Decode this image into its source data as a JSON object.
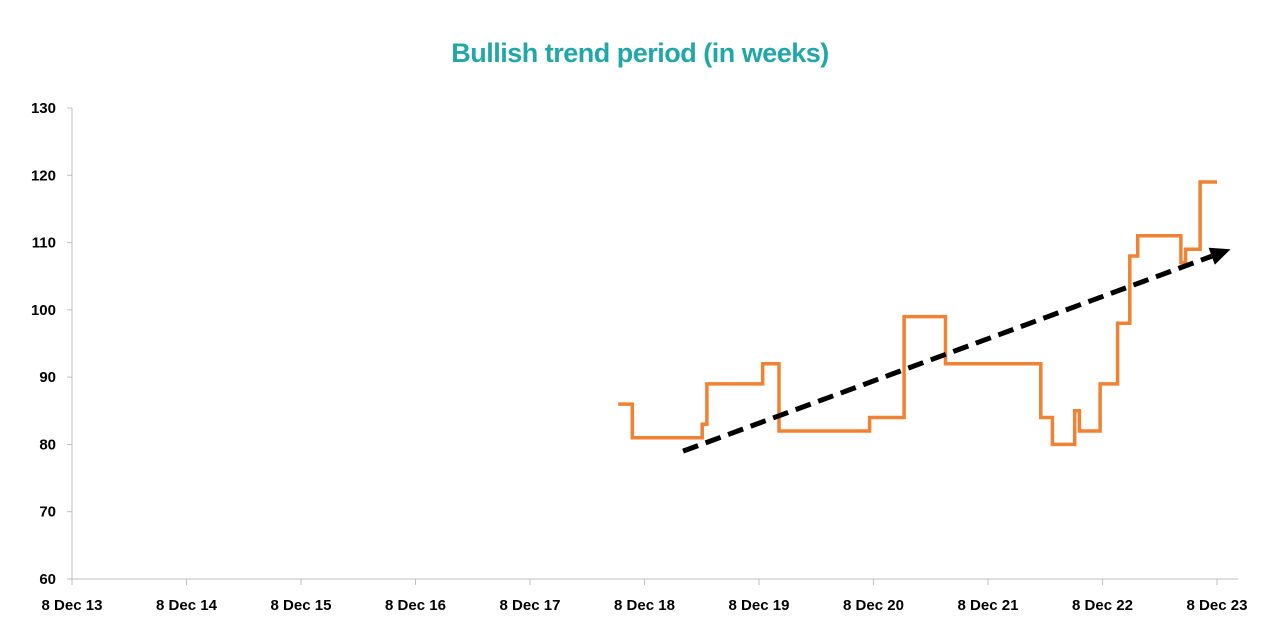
{
  "colors": {
    "title": "#21a7a8",
    "series": "#f08233",
    "trend_arrow": "#000000",
    "axis": "#bfbfbf"
  },
  "chart_data": {
    "type": "line",
    "title": "Bullish trend period (in weeks)",
    "xlabel": "",
    "ylabel": "",
    "x_tick_labels": [
      "8 Dec 13",
      "8 Dec 14",
      "8 Dec 15",
      "8 Dec 16",
      "8 Dec 17",
      "8 Dec 18",
      "8 Dec 19",
      "8 Dec 20",
      "8 Dec 21",
      "8 Dec 22",
      "8 Dec 23"
    ],
    "xlim": [
      "2013-12-08",
      "2024-02-15"
    ],
    "ylim": [
      60,
      130
    ],
    "y_ticks": [
      60,
      70,
      80,
      90,
      100,
      110,
      120,
      130
    ],
    "grid": false,
    "legend": "none",
    "series": [
      {
        "style": "step",
        "points": [
          [
            "2018-09-15",
            86
          ],
          [
            "2018-10-30",
            86
          ],
          [
            "2018-10-30",
            81
          ],
          [
            "2019-06-10",
            81
          ],
          [
            "2019-06-10",
            83
          ],
          [
            "2019-06-25",
            83
          ],
          [
            "2019-06-25",
            89
          ],
          [
            "2019-12-20",
            89
          ],
          [
            "2019-12-20",
            92
          ],
          [
            "2020-02-10",
            92
          ],
          [
            "2020-02-10",
            82
          ],
          [
            "2020-11-25",
            82
          ],
          [
            "2020-11-25",
            84
          ],
          [
            "2021-03-15",
            84
          ],
          [
            "2021-03-15",
            99
          ],
          [
            "2021-07-25",
            99
          ],
          [
            "2021-07-25",
            92
          ],
          [
            "2022-05-25",
            92
          ],
          [
            "2022-05-25",
            84
          ],
          [
            "2022-07-01",
            84
          ],
          [
            "2022-07-01",
            80
          ],
          [
            "2022-09-10",
            80
          ],
          [
            "2022-09-10",
            85
          ],
          [
            "2022-09-25",
            85
          ],
          [
            "2022-09-25",
            82
          ],
          [
            "2022-11-30",
            82
          ],
          [
            "2022-11-30",
            89
          ],
          [
            "2023-01-25",
            89
          ],
          [
            "2023-01-25",
            98
          ],
          [
            "2023-03-05",
            98
          ],
          [
            "2023-03-05",
            108
          ],
          [
            "2023-03-30",
            108
          ],
          [
            "2023-03-30",
            111
          ],
          [
            "2023-08-15",
            111
          ],
          [
            "2023-08-15",
            107
          ],
          [
            "2023-08-30",
            107
          ],
          [
            "2023-08-30",
            109
          ],
          [
            "2023-10-15",
            109
          ],
          [
            "2023-10-15",
            119
          ],
          [
            "2023-12-08",
            119
          ]
        ]
      }
    ],
    "annotations": [
      {
        "type": "trend-arrow",
        "style": "dashed",
        "from": [
          "2019-04-10",
          79
        ],
        "to": [
          "2024-01-20",
          109
        ]
      }
    ]
  }
}
